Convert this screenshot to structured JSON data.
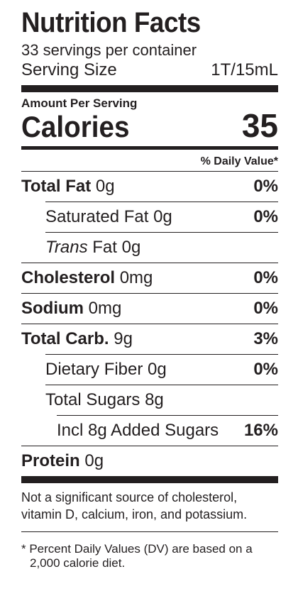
{
  "label": {
    "title": "Nutrition Facts",
    "servings_per_container": "33 servings per container",
    "serving_size_label": "Serving Size",
    "serving_size_value": "1T/15mL",
    "amount_per_serving": "Amount Per Serving",
    "calories_label": "Calories",
    "calories_value": "35",
    "dv_header": "% Daily Value*",
    "nutrients": {
      "total_fat": {
        "name": "Total Fat",
        "amount": "0g",
        "dv": "0%"
      },
      "saturated_fat": {
        "name": "Saturated Fat 0g",
        "dv": "0%"
      },
      "trans_fat": {
        "name_italic": "Trans",
        "name_rest": "Fat 0g"
      },
      "cholesterol": {
        "name": "Cholesterol",
        "amount": "0mg",
        "dv": "0%"
      },
      "sodium": {
        "name": "Sodium",
        "amount": "0mg",
        "dv": "0%"
      },
      "total_carb": {
        "name": "Total Carb.",
        "amount": "9g",
        "dv": "3%"
      },
      "dietary_fiber": {
        "name": "Dietary Fiber 0g",
        "dv": "0%"
      },
      "total_sugars": {
        "name": "Total Sugars 8g"
      },
      "added_sugars": {
        "name": "Incl 8g Added Sugars",
        "dv": "16%"
      },
      "protein": {
        "name": "Protein",
        "amount": "0g"
      }
    },
    "footnote_not_significant": "Not a significant source of cholesterol, vitamin D, calcium, iron, and potassium.",
    "footnote_dv": "* Percent Daily Values (DV) are based on a 2,000 calorie diet."
  }
}
